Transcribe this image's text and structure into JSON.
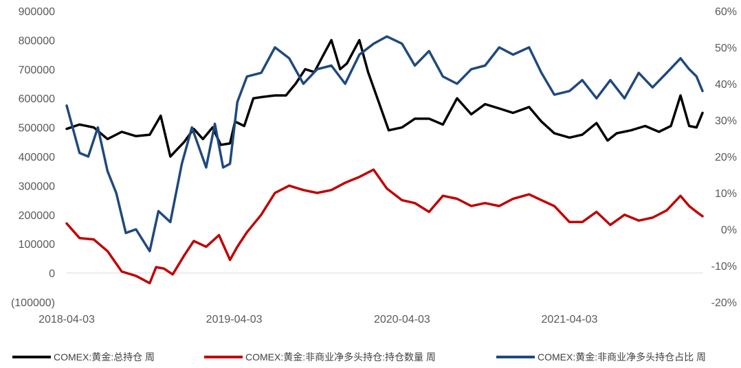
{
  "chart_data": {
    "type": "line",
    "title": "",
    "xlabel": "",
    "ylabel": "",
    "grid": false,
    "legend_position": "bottom",
    "x_ticks": [
      "2018-04-03",
      "2019-04-03",
      "2020-04-03",
      "2021-04-03"
    ],
    "x_range": [
      "2018-04-03",
      "2022-01-18"
    ],
    "y_left": {
      "range": [
        -100000,
        900000
      ],
      "ticks": [
        900000,
        800000,
        700000,
        600000,
        500000,
        400000,
        300000,
        200000,
        100000,
        0,
        -100000
      ],
      "tick_labels": [
        "900000",
        "800000",
        "700000",
        "600000",
        "500000",
        "400000",
        "300000",
        "200000",
        "100000",
        "0",
        "(100000)"
      ],
      "negative_label_color": "#ff0000"
    },
    "y_right": {
      "range": [
        -20,
        60
      ],
      "unit": "%",
      "ticks": [
        60,
        50,
        40,
        30,
        20,
        10,
        0,
        -10,
        -20
      ],
      "tick_labels": [
        "60%",
        "50%",
        "40%",
        "30%",
        "20%",
        "10%",
        "0%",
        "-10%",
        "-20%"
      ]
    },
    "series": [
      {
        "name": "COMEX:黄金:总持仓 周",
        "axis": "left",
        "color": "#000000",
        "points": [
          [
            "2018-04-03",
            495000
          ],
          [
            "2018-05-01",
            510000
          ],
          [
            "2018-06-01",
            500000
          ],
          [
            "2018-07-01",
            460000
          ],
          [
            "2018-08-01",
            485000
          ],
          [
            "2018-09-01",
            470000
          ],
          [
            "2018-10-01",
            475000
          ],
          [
            "2018-10-25",
            540000
          ],
          [
            "2018-11-15",
            400000
          ],
          [
            "2018-12-15",
            450000
          ],
          [
            "2019-01-05",
            495000
          ],
          [
            "2019-01-25",
            460000
          ],
          [
            "2019-02-15",
            500000
          ],
          [
            "2019-03-05",
            440000
          ],
          [
            "2019-03-25",
            445000
          ],
          [
            "2019-04-05",
            520000
          ],
          [
            "2019-04-25",
            505000
          ],
          [
            "2019-05-15",
            600000
          ],
          [
            "2019-06-05",
            605000
          ],
          [
            "2019-07-01",
            610000
          ],
          [
            "2019-07-25",
            610000
          ],
          [
            "2019-08-15",
            650000
          ],
          [
            "2019-09-05",
            700000
          ],
          [
            "2019-09-25",
            690000
          ],
          [
            "2019-10-15",
            750000
          ],
          [
            "2019-11-01",
            800000
          ],
          [
            "2019-11-20",
            700000
          ],
          [
            "2019-12-05",
            720000
          ],
          [
            "2020-01-01",
            800000
          ],
          [
            "2020-01-20",
            690000
          ],
          [
            "2020-02-15",
            575000
          ],
          [
            "2020-03-05",
            490000
          ],
          [
            "2020-04-03",
            500000
          ],
          [
            "2020-05-01",
            530000
          ],
          [
            "2020-06-01",
            530000
          ],
          [
            "2020-07-01",
            510000
          ],
          [
            "2020-08-01",
            600000
          ],
          [
            "2020-09-01",
            545000
          ],
          [
            "2020-10-01",
            580000
          ],
          [
            "2020-11-01",
            565000
          ],
          [
            "2020-12-01",
            550000
          ],
          [
            "2021-01-05",
            570000
          ],
          [
            "2021-02-01",
            520000
          ],
          [
            "2021-03-01",
            480000
          ],
          [
            "2021-04-03",
            465000
          ],
          [
            "2021-05-01",
            475000
          ],
          [
            "2021-06-01",
            515000
          ],
          [
            "2021-06-25",
            455000
          ],
          [
            "2021-07-15",
            480000
          ],
          [
            "2021-08-15",
            490000
          ],
          [
            "2021-09-15",
            505000
          ],
          [
            "2021-10-15",
            485000
          ],
          [
            "2021-11-10",
            505000
          ],
          [
            "2021-12-01",
            610000
          ],
          [
            "2021-12-20",
            505000
          ],
          [
            "2022-01-05",
            500000
          ],
          [
            "2022-01-18",
            550000
          ]
        ]
      },
      {
        "name": "COMEX:黄金:非商业净多头持仓:持仓数量 周",
        "axis": "left",
        "color": "#c00000",
        "points": [
          [
            "2018-04-03",
            170000
          ],
          [
            "2018-05-01",
            120000
          ],
          [
            "2018-06-01",
            115000
          ],
          [
            "2018-07-01",
            75000
          ],
          [
            "2018-08-01",
            5000
          ],
          [
            "2018-09-01",
            -10000
          ],
          [
            "2018-10-01",
            -35000
          ],
          [
            "2018-10-15",
            20000
          ],
          [
            "2018-11-01",
            15000
          ],
          [
            "2018-11-20",
            -5000
          ],
          [
            "2018-12-15",
            60000
          ],
          [
            "2019-01-05",
            110000
          ],
          [
            "2019-02-01",
            90000
          ],
          [
            "2019-03-01",
            130000
          ],
          [
            "2019-03-25",
            45000
          ],
          [
            "2019-04-10",
            90000
          ],
          [
            "2019-05-01",
            140000
          ],
          [
            "2019-06-01",
            200000
          ],
          [
            "2019-07-01",
            275000
          ],
          [
            "2019-08-01",
            300000
          ],
          [
            "2019-09-01",
            285000
          ],
          [
            "2019-10-01",
            275000
          ],
          [
            "2019-11-01",
            285000
          ],
          [
            "2019-12-01",
            310000
          ],
          [
            "2020-01-01",
            330000
          ],
          [
            "2020-02-01",
            355000
          ],
          [
            "2020-03-01",
            290000
          ],
          [
            "2020-04-03",
            250000
          ],
          [
            "2020-05-01",
            240000
          ],
          [
            "2020-06-01",
            210000
          ],
          [
            "2020-07-01",
            265000
          ],
          [
            "2020-08-01",
            255000
          ],
          [
            "2020-09-01",
            230000
          ],
          [
            "2020-10-01",
            240000
          ],
          [
            "2020-11-01",
            230000
          ],
          [
            "2020-12-01",
            255000
          ],
          [
            "2021-01-05",
            270000
          ],
          [
            "2021-02-01",
            250000
          ],
          [
            "2021-03-01",
            230000
          ],
          [
            "2021-04-03",
            175000
          ],
          [
            "2021-05-01",
            175000
          ],
          [
            "2021-06-01",
            210000
          ],
          [
            "2021-07-01",
            165000
          ],
          [
            "2021-08-01",
            200000
          ],
          [
            "2021-09-01",
            180000
          ],
          [
            "2021-10-01",
            190000
          ],
          [
            "2021-11-01",
            215000
          ],
          [
            "2021-12-01",
            265000
          ],
          [
            "2021-12-20",
            230000
          ],
          [
            "2022-01-05",
            210000
          ],
          [
            "2022-01-18",
            195000
          ]
        ]
      },
      {
        "name": "COMEX:黄金:非商业净多头持仓占比 周",
        "axis": "right",
        "color": "#1f497d",
        "points": [
          [
            "2018-04-03",
            34
          ],
          [
            "2018-05-01",
            21
          ],
          [
            "2018-05-20",
            20
          ],
          [
            "2018-06-10",
            28
          ],
          [
            "2018-07-01",
            16
          ],
          [
            "2018-07-20",
            10
          ],
          [
            "2018-08-10",
            -1
          ],
          [
            "2018-09-01",
            0
          ],
          [
            "2018-10-01",
            -6
          ],
          [
            "2018-10-20",
            5
          ],
          [
            "2018-11-15",
            2
          ],
          [
            "2018-12-10",
            18
          ],
          [
            "2019-01-01",
            28
          ],
          [
            "2019-02-01",
            17
          ],
          [
            "2019-02-20",
            29
          ],
          [
            "2019-03-10",
            17
          ],
          [
            "2019-03-25",
            18
          ],
          [
            "2019-04-10",
            35
          ],
          [
            "2019-05-01",
            42
          ],
          [
            "2019-06-01",
            43
          ],
          [
            "2019-07-01",
            50
          ],
          [
            "2019-08-01",
            47
          ],
          [
            "2019-09-01",
            40
          ],
          [
            "2019-10-01",
            44
          ],
          [
            "2019-11-01",
            45
          ],
          [
            "2019-12-01",
            40
          ],
          [
            "2020-01-01",
            48
          ],
          [
            "2020-02-01",
            51
          ],
          [
            "2020-03-01",
            53
          ],
          [
            "2020-04-03",
            51
          ],
          [
            "2020-05-01",
            45
          ],
          [
            "2020-06-01",
            49
          ],
          [
            "2020-07-01",
            42
          ],
          [
            "2020-08-01",
            40
          ],
          [
            "2020-09-01",
            44
          ],
          [
            "2020-10-01",
            45
          ],
          [
            "2020-11-01",
            50
          ],
          [
            "2020-12-01",
            48
          ],
          [
            "2021-01-05",
            50
          ],
          [
            "2021-02-01",
            43
          ],
          [
            "2021-03-01",
            37
          ],
          [
            "2021-04-03",
            38
          ],
          [
            "2021-05-01",
            41
          ],
          [
            "2021-06-01",
            36
          ],
          [
            "2021-07-01",
            41
          ],
          [
            "2021-08-01",
            36
          ],
          [
            "2021-09-01",
            43
          ],
          [
            "2021-10-01",
            39
          ],
          [
            "2021-11-01",
            43
          ],
          [
            "2021-12-01",
            47
          ],
          [
            "2021-12-20",
            44
          ],
          [
            "2022-01-05",
            42
          ],
          [
            "2022-01-18",
            38
          ]
        ]
      }
    ]
  }
}
